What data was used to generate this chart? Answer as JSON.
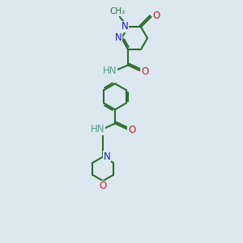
{
  "bg_color": "#dce8f0",
  "bond_color": "#2d6b2d",
  "N_color": "#1a1acc",
  "O_color": "#cc1a1a",
  "NH_color": "#5a9a8a",
  "lw": 1.5,
  "fs": 8.5,
  "fs_small": 7.5,
  "xlim": [
    0,
    10
  ],
  "ylim": [
    0,
    13
  ],
  "figsize": [
    3.0,
    3.0
  ],
  "dpi": 100
}
